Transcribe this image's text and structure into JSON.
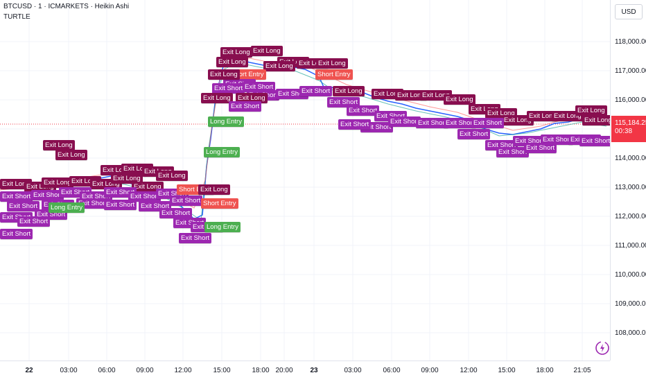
{
  "header": {
    "symbol_line": "BTCUSD · 1 · ICMARKETS · Heikin Ashi",
    "indicator": "TURTLE"
  },
  "price_axis": {
    "currency": "USD",
    "levels": [
      "118,000.00",
      "117,000.00",
      "116,000.00",
      "115,000.00",
      "114,000.00",
      "113,000.00",
      "112,000.00",
      "111,000.00",
      "110,000.00",
      "109,000.00",
      "108,000.00"
    ],
    "current_price": "115,184.25",
    "countdown": "00:38"
  },
  "time_axis": {
    "labels": [
      "22",
      "03:00",
      "06:00",
      "09:00",
      "12:00",
      "15:00",
      "18:00",
      "20:00",
      "23",
      "03:00",
      "06:00",
      "09:00",
      "12:00",
      "15:00",
      "18:00",
      "21:05"
    ]
  },
  "signal_labels": {
    "exit_long": "Exit Long",
    "exit_short": "Exit Short",
    "long_entry": "Long Entry",
    "short_entry": "Short Entry"
  },
  "colors": {
    "exit_long": "#880e4f",
    "exit_short": "#9c27b0",
    "long_entry": "#4caf50",
    "short_entry": "#ef5350",
    "current_price": "#f23645",
    "price_line": "#2962ff"
  },
  "icons": [
    "tradingview-logo-icon"
  ]
}
